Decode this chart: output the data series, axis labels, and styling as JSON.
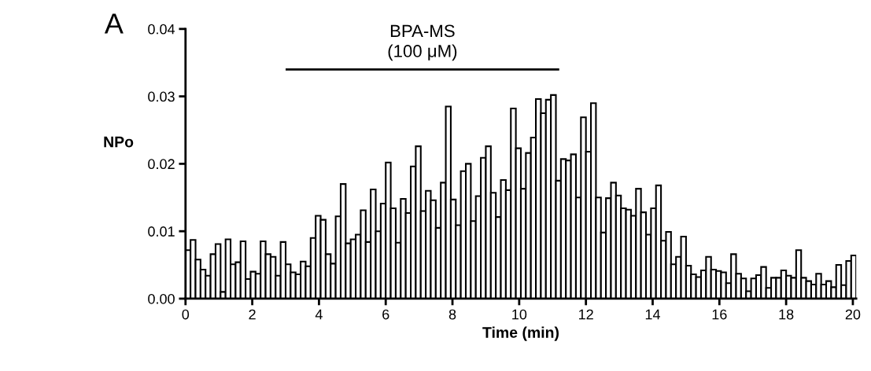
{
  "chart_data": {
    "type": "histogram",
    "xlabel": "Time (min)",
    "ylabel": "NPo",
    "annotations": [
      "A",
      "BPA-MS\n(100 μM)"
    ],
    "series": [
      {
        "type": "line",
        "x": [
          3,
          11.2
        ],
        "values": [
          0.034,
          0.034
        ],
        "color": "#000000"
      }
    ],
    "color": "#ffffff",
    "bins": [
      0,
      0.15,
      0.3,
      0.45,
      0.6,
      0.75,
      0.9,
      1.05,
      1.2,
      1.35,
      1.5,
      1.65,
      1.8,
      1.95,
      2.1,
      2.25,
      2.4,
      2.55,
      2.7,
      2.85,
      3,
      3.15,
      3.3,
      3.45,
      3.6,
      3.75,
      3.9,
      4.05,
      4.2,
      4.35,
      4.5,
      4.65,
      4.8,
      4.95,
      5.1,
      5.25,
      5.4,
      5.55,
      5.7,
      5.85,
      6,
      6.15,
      6.3,
      6.45,
      6.6,
      6.75,
      6.9,
      7.05,
      7.2,
      7.35,
      7.5,
      7.65,
      7.8,
      7.95,
      8.1,
      8.25,
      8.4,
      8.55,
      8.7,
      8.85,
      9,
      9.15,
      9.3,
      9.45,
      9.6,
      9.75,
      9.9,
      10.05,
      10.2,
      10.35,
      10.5,
      10.65,
      10.8,
      10.95,
      11.1,
      11.25,
      11.4,
      11.55,
      11.7,
      11.85,
      12,
      12.15,
      12.3,
      12.45,
      12.6,
      12.75,
      12.9,
      13.05,
      13.2,
      13.35,
      13.5,
      13.65,
      13.8,
      13.95,
      14.1,
      14.25,
      14.4,
      14.55,
      14.7,
      14.85,
      15,
      15.15,
      15.3,
      15.45,
      15.6,
      15.75,
      15.9,
      16.05,
      16.2,
      16.35,
      16.5,
      16.65,
      16.8,
      16.95,
      17.1,
      17.25,
      17.4,
      17.55,
      17.7,
      17.85,
      18,
      18.15,
      18.3,
      18.45,
      18.6,
      18.75,
      18.9,
      19.05,
      19.2,
      19.35,
      19.5,
      19.65,
      19.8,
      19.95,
      20.1
    ],
    "values": [
      0.0072,
      0.0087,
      0.0058,
      0.0043,
      0.0034,
      0.0066,
      0.0081,
      0.001,
      0.0088,
      0.0051,
      0.0054,
      0.0085,
      0.0029,
      0.004,
      0.0037,
      0.0085,
      0.0066,
      0.0062,
      0.0034,
      0.0084,
      0.0051,
      0.0039,
      0.0036,
      0.0055,
      0.0048,
      0.009,
      0.0123,
      0.0117,
      0.0066,
      0.0052,
      0.0122,
      0.017,
      0.0082,
      0.0088,
      0.0095,
      0.0131,
      0.0084,
      0.0162,
      0.01,
      0.0141,
      0.0202,
      0.0134,
      0.0083,
      0.0148,
      0.0127,
      0.0196,
      0.0226,
      0.013,
      0.016,
      0.0146,
      0.0105,
      0.0172,
      0.0285,
      0.0147,
      0.0109,
      0.0189,
      0.02,
      0.0115,
      0.0152,
      0.0209,
      0.0226,
      0.0157,
      0.0121,
      0.0176,
      0.0161,
      0.0282,
      0.0223,
      0.0163,
      0.0216,
      0.0239,
      0.0296,
      0.0275,
      0.0295,
      0.0302,
      0.0175,
      0.0207,
      0.0205,
      0.0214,
      0.015,
      0.0269,
      0.0218,
      0.029,
      0.015,
      0.0098,
      0.0149,
      0.0172,
      0.0153,
      0.0134,
      0.0132,
      0.0123,
      0.0163,
      0.0128,
      0.0095,
      0.0134,
      0.0168,
      0.0086,
      0.0099,
      0.0051,
      0.0062,
      0.0092,
      0.0049,
      0.0036,
      0.0032,
      0.0042,
      0.0062,
      0.0043,
      0.0041,
      0.0039,
      0.0023,
      0.0066,
      0.0037,
      0.003,
      0.0011,
      0.003,
      0.0035,
      0.0047,
      0.0016,
      0.0031,
      0.0031,
      0.0042,
      0.0034,
      0.0031,
      0.0072,
      0.0031,
      0.0026,
      0.0021,
      0.0037,
      0.0021,
      0.0026,
      0.0017,
      0.005,
      0.002,
      0.0056,
      0.0064
    ],
    "xlim": [
      0,
      20.1
    ],
    "xticks": [
      0,
      2,
      4,
      6,
      8,
      10,
      12,
      14,
      16,
      18,
      20
    ],
    "ylim": [
      0,
      0.04
    ],
    "yticks": [
      {
        "value": 0,
        "label": "0.00"
      },
      {
        "value": 0.01,
        "label": "0.01"
      },
      {
        "value": 0.02,
        "label": "0.02"
      },
      {
        "value": 0.03,
        "label": "0.03"
      },
      {
        "value": 0.04,
        "label": "0.04"
      }
    ],
    "grid": false,
    "legend": false
  }
}
